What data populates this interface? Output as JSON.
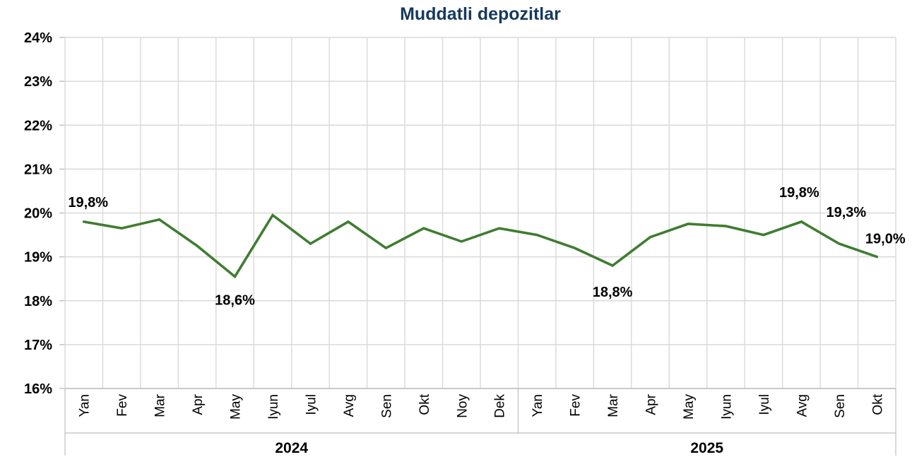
{
  "title": "Muddatli depozitlar",
  "chart_data": {
    "type": "line",
    "title": "Muddatli depozitlar",
    "categories": [
      "Yan",
      "Fev",
      "Mar",
      "Apr",
      "May",
      "Iyun",
      "Iyul",
      "Avg",
      "Sen",
      "Okt",
      "Noy",
      "Dek",
      "Yan",
      "Fev",
      "Mar",
      "Apr",
      "May",
      "Iyun",
      "Iyul",
      "Avg",
      "Sen",
      "Okt"
    ],
    "year_groups": [
      {
        "label": "2024",
        "start": 0,
        "count": 12
      },
      {
        "label": "2025",
        "start": 12,
        "count": 10
      }
    ],
    "values": [
      19.8,
      19.65,
      19.85,
      19.25,
      18.55,
      19.95,
      19.3,
      19.8,
      19.2,
      19.65,
      19.35,
      19.65,
      19.5,
      19.2,
      18.8,
      19.45,
      19.75,
      19.7,
      19.5,
      19.8,
      19.3,
      19.0
    ],
    "ylim": [
      16,
      24
    ],
    "ytick_step": 1,
    "yticks": [
      "16%",
      "17%",
      "18%",
      "19%",
      "20%",
      "21%",
      "22%",
      "23%",
      "24%"
    ],
    "grid": true,
    "legend": "none",
    "data_labels": [
      {
        "index": 0,
        "text": "19,8%",
        "placement": "above"
      },
      {
        "index": 4,
        "text": "18,6%",
        "placement": "below"
      },
      {
        "index": 14,
        "text": "18,8%",
        "placement": "below"
      },
      {
        "index": 19,
        "text": "19,8%",
        "placement": "above"
      },
      {
        "index": 20,
        "text": "19,3%",
        "placement": "above-right"
      },
      {
        "index": 21,
        "text": "19,0%",
        "placement": "above-right"
      }
    ]
  },
  "colors": {
    "title": "#17395D",
    "line": "#3F7D30",
    "gridline": "#D9D9D9",
    "axis": "#BFBFBF",
    "text": "#000000"
  }
}
